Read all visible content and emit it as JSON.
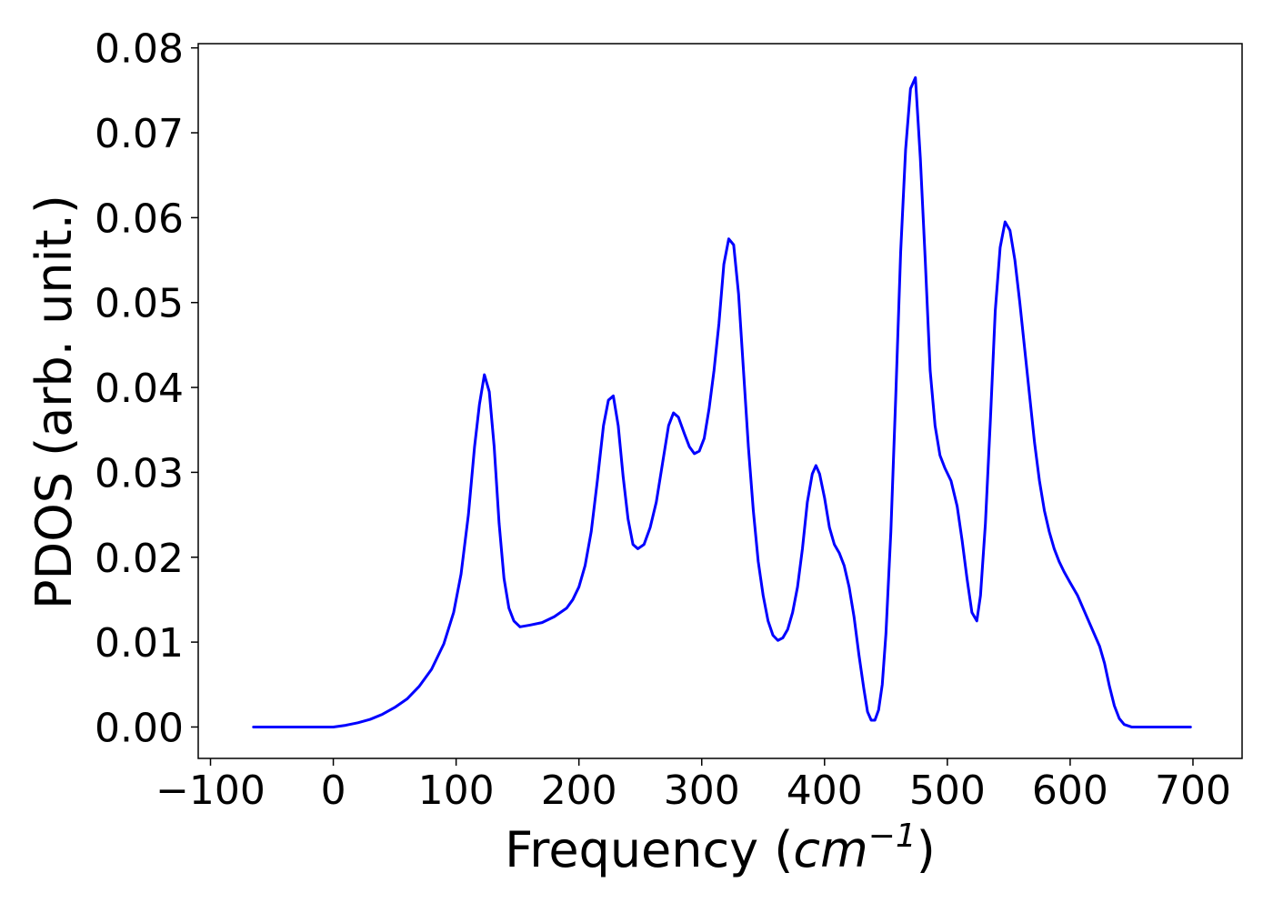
{
  "chart_data": {
    "type": "line",
    "title": "",
    "xlabel": "Frequency",
    "xlabel_unit_base": "cm",
    "xlabel_unit_exp": "−1",
    "ylabel": "PDOS (arb. unit.)",
    "xlim": [
      -110,
      740
    ],
    "ylim": [
      -0.0037,
      0.0805
    ],
    "x_ticks": [
      {
        "value": -100,
        "label": "−100"
      },
      {
        "value": 0,
        "label": "0"
      },
      {
        "value": 100,
        "label": "100"
      },
      {
        "value": 200,
        "label": "200"
      },
      {
        "value": 300,
        "label": "300"
      },
      {
        "value": 400,
        "label": "400"
      },
      {
        "value": 500,
        "label": "500"
      },
      {
        "value": 600,
        "label": "600"
      },
      {
        "value": 700,
        "label": "700"
      }
    ],
    "y_ticks": [
      {
        "value": 0.0,
        "label": "0.00"
      },
      {
        "value": 0.01,
        "label": "0.01"
      },
      {
        "value": 0.02,
        "label": "0.02"
      },
      {
        "value": 0.03,
        "label": "0.03"
      },
      {
        "value": 0.04,
        "label": "0.04"
      },
      {
        "value": 0.05,
        "label": "0.05"
      },
      {
        "value": 0.06,
        "label": "0.06"
      },
      {
        "value": 0.07,
        "label": "0.07"
      },
      {
        "value": 0.08,
        "label": "0.08"
      }
    ],
    "grid": false,
    "legend": "none",
    "series": [
      {
        "color": "#0000ff",
        "points": [
          [
            -65,
            0.0
          ],
          [
            -40,
            0.0
          ],
          [
            -20,
            0.0
          ],
          [
            0,
            0.0
          ],
          [
            10,
            0.0002
          ],
          [
            20,
            0.0005
          ],
          [
            30,
            0.0009
          ],
          [
            40,
            0.0015
          ],
          [
            50,
            0.0023
          ],
          [
            60,
            0.0033
          ],
          [
            70,
            0.0048
          ],
          [
            80,
            0.0068
          ],
          [
            90,
            0.0098
          ],
          [
            98,
            0.0135
          ],
          [
            104,
            0.018
          ],
          [
            110,
            0.025
          ],
          [
            115,
            0.033
          ],
          [
            119,
            0.038
          ],
          [
            123,
            0.0415
          ],
          [
            127,
            0.0395
          ],
          [
            131,
            0.033
          ],
          [
            135,
            0.024
          ],
          [
            139,
            0.0175
          ],
          [
            143,
            0.014
          ],
          [
            147,
            0.0125
          ],
          [
            152,
            0.0118
          ],
          [
            160,
            0.012
          ],
          [
            170,
            0.0123
          ],
          [
            180,
            0.013
          ],
          [
            190,
            0.014
          ],
          [
            195,
            0.015
          ],
          [
            200,
            0.0165
          ],
          [
            205,
            0.019
          ],
          [
            210,
            0.023
          ],
          [
            215,
            0.029
          ],
          [
            220,
            0.0355
          ],
          [
            224,
            0.0385
          ],
          [
            228,
            0.039
          ],
          [
            232,
            0.0355
          ],
          [
            236,
            0.0295
          ],
          [
            240,
            0.0245
          ],
          [
            244,
            0.0215
          ],
          [
            248,
            0.021
          ],
          [
            253,
            0.0215
          ],
          [
            258,
            0.0235
          ],
          [
            263,
            0.0265
          ],
          [
            268,
            0.031
          ],
          [
            273,
            0.0355
          ],
          [
            277,
            0.037
          ],
          [
            281,
            0.0365
          ],
          [
            286,
            0.0345
          ],
          [
            290,
            0.033
          ],
          [
            294,
            0.0322
          ],
          [
            298,
            0.0325
          ],
          [
            302,
            0.034
          ],
          [
            306,
            0.0375
          ],
          [
            310,
            0.042
          ],
          [
            314,
            0.0475
          ],
          [
            318,
            0.0545
          ],
          [
            322,
            0.0575
          ],
          [
            326,
            0.0568
          ],
          [
            330,
            0.051
          ],
          [
            334,
            0.042
          ],
          [
            338,
            0.033
          ],
          [
            342,
            0.0255
          ],
          [
            346,
            0.0195
          ],
          [
            350,
            0.0155
          ],
          [
            354,
            0.0125
          ],
          [
            358,
            0.0108
          ],
          [
            362,
            0.0102
          ],
          [
            366,
            0.0105
          ],
          [
            370,
            0.0115
          ],
          [
            374,
            0.0135
          ],
          [
            378,
            0.0165
          ],
          [
            382,
            0.021
          ],
          [
            386,
            0.0265
          ],
          [
            390,
            0.0298
          ],
          [
            393,
            0.0308
          ],
          [
            396,
            0.0298
          ],
          [
            400,
            0.027
          ],
          [
            404,
            0.0235
          ],
          [
            408,
            0.0215
          ],
          [
            412,
            0.0205
          ],
          [
            416,
            0.019
          ],
          [
            420,
            0.0165
          ],
          [
            424,
            0.013
          ],
          [
            428,
            0.0085
          ],
          [
            432,
            0.0045
          ],
          [
            435,
            0.0018
          ],
          [
            438,
            0.0008
          ],
          [
            441,
            0.0008
          ],
          [
            444,
            0.002
          ],
          [
            447,
            0.005
          ],
          [
            450,
            0.011
          ],
          [
            454,
            0.023
          ],
          [
            458,
            0.039
          ],
          [
            462,
            0.056
          ],
          [
            466,
            0.068
          ],
          [
            470,
            0.0752
          ],
          [
            474,
            0.0765
          ],
          [
            478,
            0.067
          ],
          [
            482,
            0.055
          ],
          [
            486,
            0.042
          ],
          [
            490,
            0.0355
          ],
          [
            494,
            0.032
          ],
          [
            498,
            0.0305
          ],
          [
            503,
            0.029
          ],
          [
            508,
            0.026
          ],
          [
            512,
            0.022
          ],
          [
            516,
            0.0175
          ],
          [
            520,
            0.0135
          ],
          [
            524,
            0.0125
          ],
          [
            527,
            0.0155
          ],
          [
            531,
            0.024
          ],
          [
            535,
            0.036
          ],
          [
            539,
            0.049
          ],
          [
            543,
            0.0565
          ],
          [
            547,
            0.0595
          ],
          [
            551,
            0.0585
          ],
          [
            555,
            0.055
          ],
          [
            559,
            0.05
          ],
          [
            563,
            0.0445
          ],
          [
            567,
            0.039
          ],
          [
            571,
            0.0335
          ],
          [
            575,
            0.029
          ],
          [
            579,
            0.0255
          ],
          [
            583,
            0.023
          ],
          [
            587,
            0.021
          ],
          [
            591,
            0.0195
          ],
          [
            595,
            0.0183
          ],
          [
            600,
            0.017
          ],
          [
            606,
            0.0155
          ],
          [
            612,
            0.0135
          ],
          [
            618,
            0.0115
          ],
          [
            624,
            0.0095
          ],
          [
            628,
            0.0075
          ],
          [
            632,
            0.0048
          ],
          [
            636,
            0.0025
          ],
          [
            640,
            0.001
          ],
          [
            644,
            0.0003
          ],
          [
            650,
            0.0
          ],
          [
            660,
            0.0
          ],
          [
            680,
            0.0
          ],
          [
            698,
            0.0
          ]
        ]
      }
    ]
  }
}
